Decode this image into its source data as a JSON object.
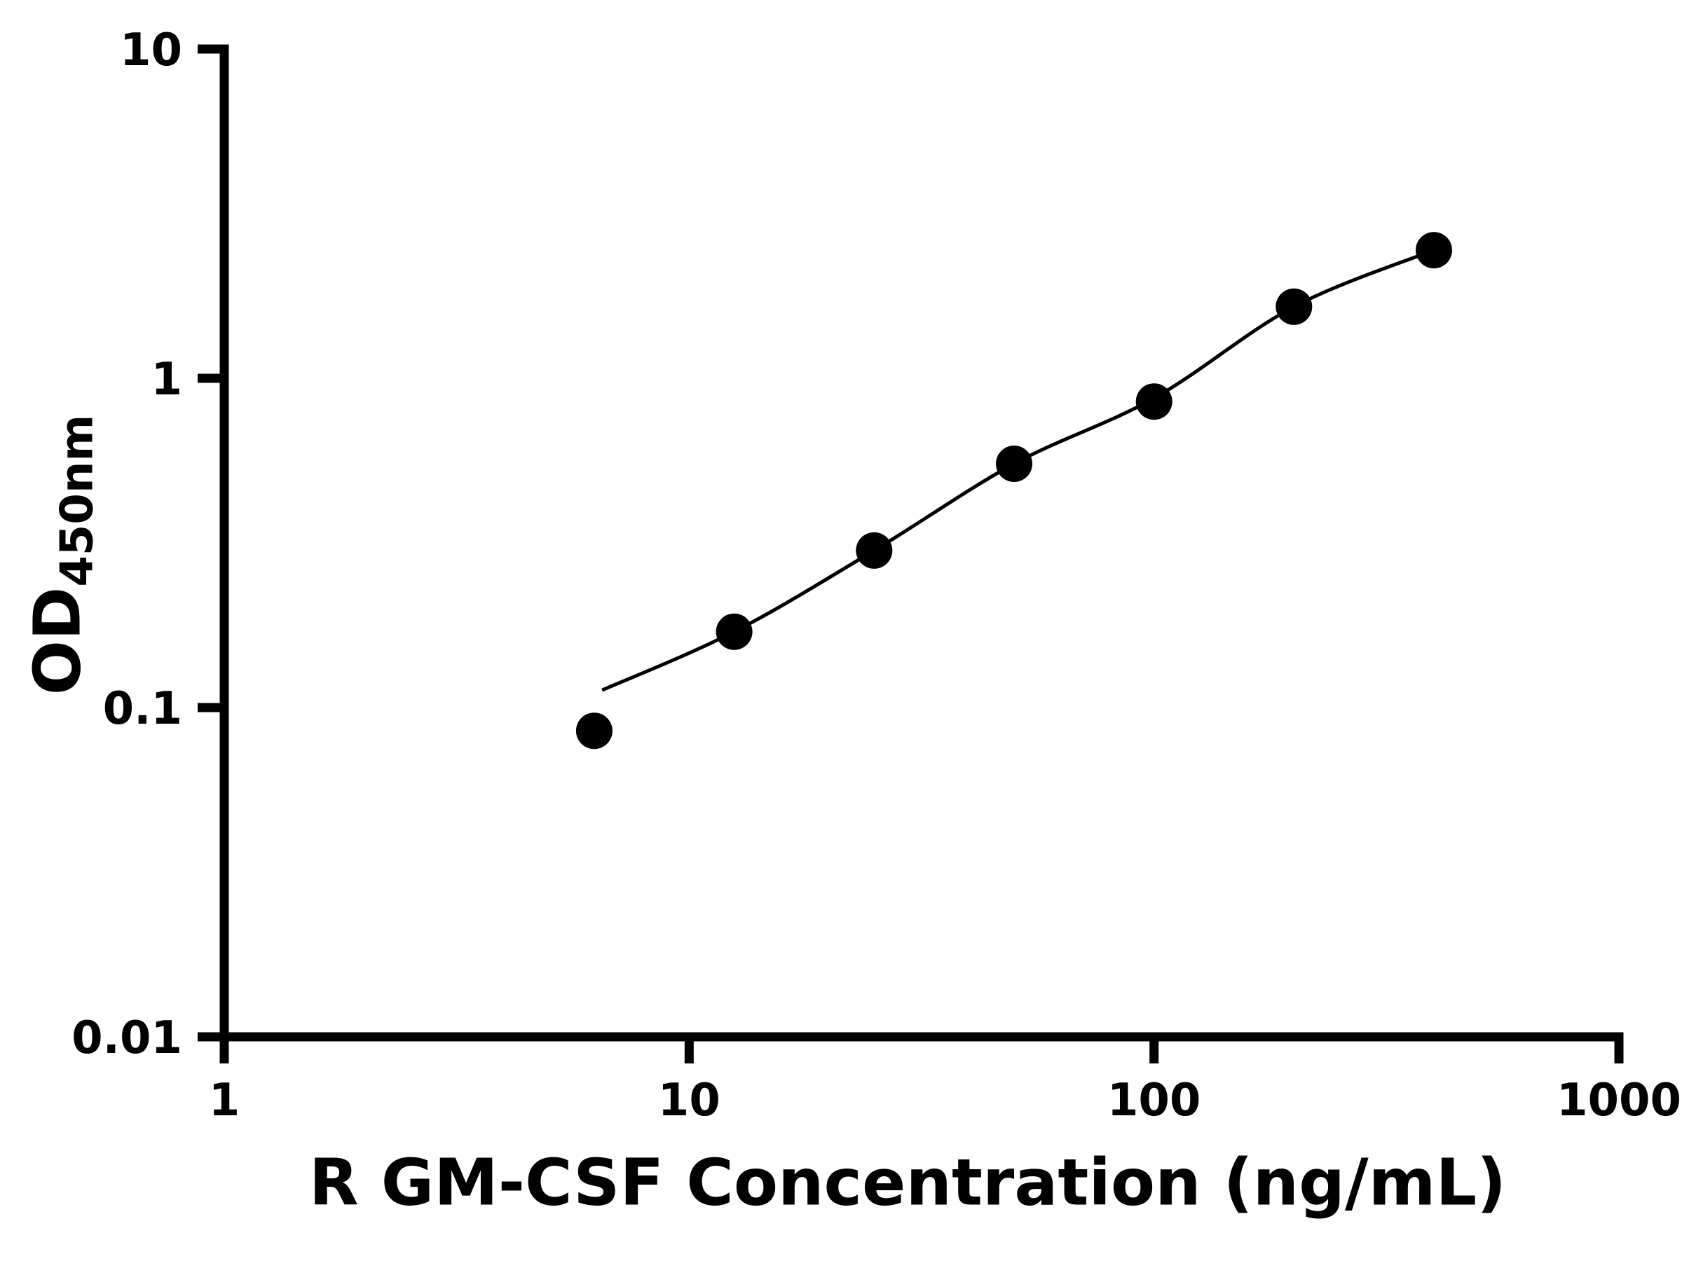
{
  "figure": {
    "background_color": "#ffffff",
    "axis_color": "#000000",
    "text_color": "#000000"
  },
  "chart_data": {
    "type": "scatter",
    "title": "",
    "xlabel": "R GM-CSF Concentration (ng/mL)",
    "ylabel": "OD450nm",
    "ylabel_main": "OD",
    "ylabel_sub": "450nm",
    "xscale": "log",
    "yscale": "log",
    "xlim": [
      1,
      1000
    ],
    "ylim": [
      0.01,
      10
    ],
    "grid": false,
    "legend": false,
    "axis_color": "#000000",
    "x_ticks": [
      {
        "value": 1,
        "label": "1"
      },
      {
        "value": 10,
        "label": "10"
      },
      {
        "value": 100,
        "label": "100"
      },
      {
        "value": 1000,
        "label": "1000"
      }
    ],
    "y_ticks": [
      {
        "value": 0.01,
        "label": "0.01"
      },
      {
        "value": 0.1,
        "label": "0.1"
      },
      {
        "value": 1,
        "label": "1"
      },
      {
        "value": 10,
        "label": "10"
      }
    ],
    "series": [
      {
        "x": [
          6.25,
          12.5,
          25,
          50,
          100,
          200,
          400
        ],
        "y": [
          0.085,
          0.17,
          0.3,
          0.55,
          0.85,
          1.65,
          2.45
        ],
        "marker": "circle",
        "marker_color": "#000000"
      }
    ],
    "fit_curve": {
      "x": [
        6.5,
        12.5,
        25,
        50,
        100,
        200,
        400
      ],
      "y": [
        0.113,
        0.17,
        0.3,
        0.55,
        0.87,
        1.65,
        2.45
      ],
      "color": "#000000"
    }
  }
}
